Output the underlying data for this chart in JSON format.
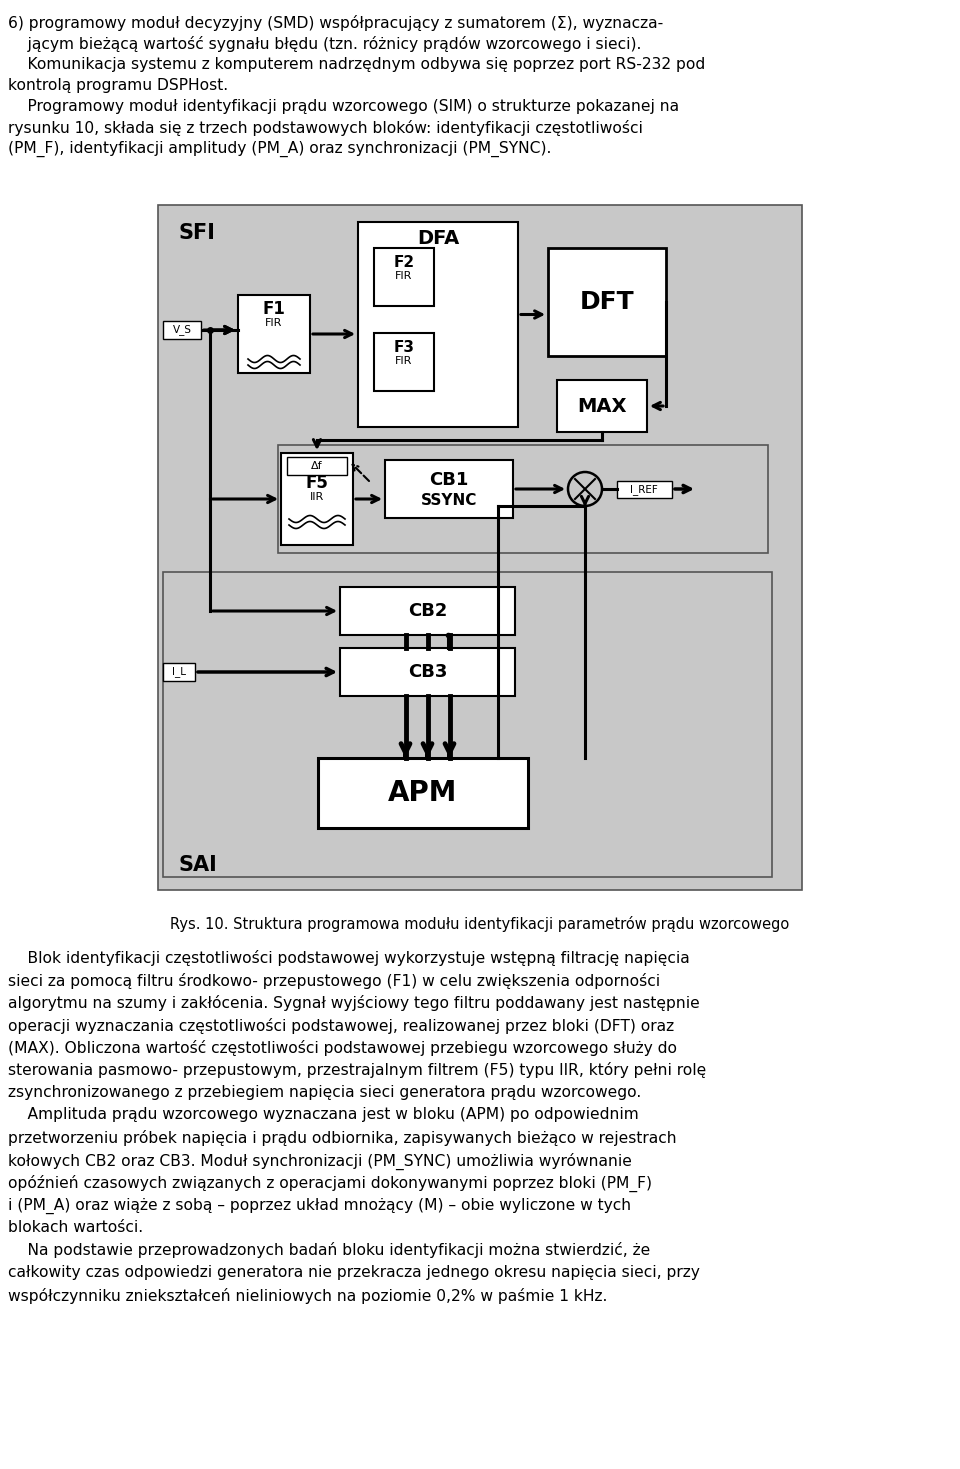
{
  "background_color": "#ffffff",
  "diagram_bg": "#c8c8c8",
  "block_bg": "#ffffff",
  "text_color": "#000000",
  "fig_width": 9.6,
  "fig_height": 14.69,
  "header_lines": [
    "6) programowy moduł decyzyjny (SMD) współpracujący z sumatorem (Σ), wyznacza-",
    "    jącym bieżącą wartość sygnału błędu (tzn. różnicy prądów wzorcowego i sieci).",
    "    Komunikacja systemu z komputerem nadrzędnym odbywa się poprzez port RS-232 pod",
    "kontrolą programu DSPHost.",
    "    Programowy moduł identyfikacji prądu wzorcowego (SIM) o strukturze pokazanej na",
    "rysunku 10, składa się z trzech podstawowych bloków: identyfikacji częstotliwości",
    "(PM_F), identyfikacji amplitudy (PM_A) oraz synchronizacji (PM_SYNC)."
  ],
  "caption": "Rys. 10. Struktura programowa modułu identyfikacji parametrów prądu wzorcowego",
  "footer_lines": [
    "    Blok identyfikacji częstotliwości podstawowej wykorzystuje wstępną filtrację napięcia",
    "sieci za pomocą filtru środkowo- przepustowego (F1) w celu zwiększenia odporności",
    "algorytmu na szumy i zakłócenia. Sygnał wyjściowy tego filtru poddawany jest następnie",
    "operacji wyznaczania częstotliwości podstawowej, realizowanej przez bloki (DFT) oraz",
    "(MAX). Obliczona wartość częstotliwości podstawowej przebiegu wzorcowego służy do",
    "sterowania pasmowo- przepustowym, przestrajalnym filtrem (F5) typu IIR, który pełni rolę",
    "zsynchronizowanego z przebiegiem napięcia sieci generatora prądu wzorcowego.",
    "    Amplituda prądu wzorcowego wyznaczana jest w bloku (APM) po odpowiednim",
    "przetworzeniu próbek napięcia i prądu odbiornika, zapisywanych bieżąco w rejestrach",
    "kołowych CB2 oraz CB3. Moduł synchronizacji (PM_SYNC) umożliwia wyrównanie",
    "opóźnień czasowych związanych z operacjami dokonywanymi poprzez bloki (PM_F)",
    "i (PM_A) oraz wiąże z sobą – poprzez układ mnożący (M) – obie wyliczone w tych",
    "blokach wartości.",
    "    Na podstawie przeprowadzonych badań bloku identyfikacji można stwierdzić, że",
    "całkowity czas odpowiedzi generatora nie przekracza jednego okresu napięcia sieci, przy",
    "współczynniku zniekształceń nieliniowych na poziomie 0,2% w paśmie 1 kHz."
  ]
}
